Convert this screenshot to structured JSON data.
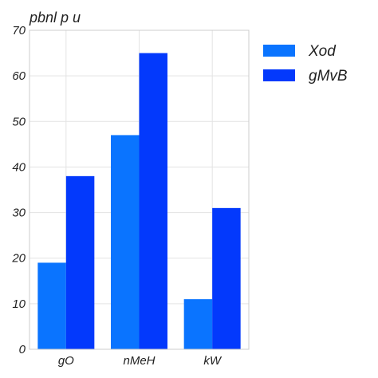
{
  "chart_data": {
    "type": "bar",
    "title": "pbnl p u",
    "xlabel": "",
    "ylabel": "",
    "categories": [
      "gO",
      "nMeH",
      "kW"
    ],
    "series": [
      {
        "name": "Xod",
        "color": "#0a74ff",
        "values": [
          19,
          47,
          11
        ]
      },
      {
        "name": "gMvB",
        "color": "#0339fc",
        "values": [
          38,
          65,
          31
        ]
      }
    ],
    "ylim": [
      0,
      70
    ],
    "yticks": [
      0,
      10,
      20,
      30,
      40,
      50,
      60,
      70
    ],
    "grid": true,
    "legend_position": "top-right outside"
  }
}
